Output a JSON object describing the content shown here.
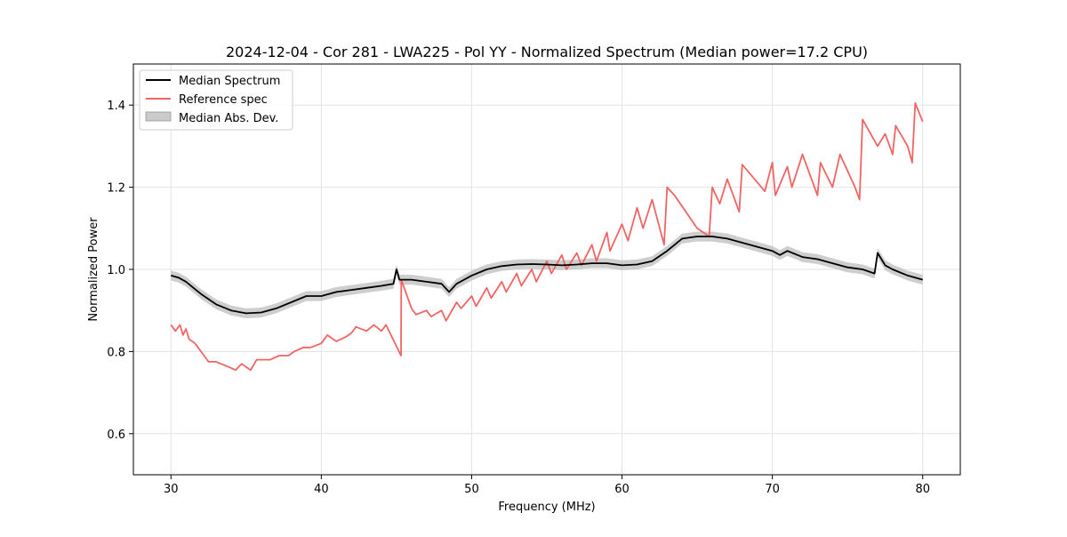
{
  "chart_data": {
    "type": "line",
    "title": "2024-12-04 - Cor 281 - LWA225 - Pol YY - Normalized Spectrum (Median power=17.2 CPU)",
    "xlabel": "Frequency (MHz)",
    "ylabel": "Normalized Power",
    "xlim": [
      27.5,
      82.5
    ],
    "ylim": [
      0.5,
      1.5
    ],
    "xticks": [
      30,
      40,
      50,
      60,
      70,
      80
    ],
    "yticks": [
      0.6,
      0.8,
      1.0,
      1.2,
      1.4
    ],
    "xtick_labels": [
      "30",
      "40",
      "50",
      "60",
      "70",
      "80"
    ],
    "ytick_labels": [
      "0.6",
      "0.8",
      "1.0",
      "1.2",
      "1.4"
    ],
    "grid": true,
    "legend_position": "top-left",
    "legend": [
      "Median Spectrum",
      "Reference spec",
      "Median Abs. Dev."
    ],
    "colors": {
      "median": "#000000",
      "reference": "#f16464",
      "band": "#bdbdbd"
    },
    "mad_width": 0.012,
    "series": [
      {
        "name": "Median Spectrum",
        "x": [
          30,
          30.5,
          31,
          31.5,
          32,
          33,
          34,
          35,
          36,
          37,
          38,
          39,
          40,
          41,
          42,
          43,
          44,
          44.8,
          45,
          45.2,
          46,
          47,
          48,
          48.5,
          49,
          50,
          51,
          52,
          53,
          54,
          55,
          56,
          57,
          58,
          59,
          60,
          61,
          62,
          63,
          64,
          65,
          66,
          67,
          68,
          69,
          70,
          70.5,
          71,
          72,
          73,
          74,
          75,
          76,
          76.8,
          77,
          77.5,
          78,
          79,
          80
        ],
        "values": [
          0.985,
          0.98,
          0.97,
          0.955,
          0.94,
          0.915,
          0.9,
          0.893,
          0.895,
          0.905,
          0.92,
          0.935,
          0.935,
          0.945,
          0.95,
          0.955,
          0.96,
          0.965,
          1.0,
          0.975,
          0.975,
          0.97,
          0.965,
          0.945,
          0.965,
          0.985,
          1.0,
          1.008,
          1.012,
          1.013,
          1.012,
          1.01,
          1.012,
          1.015,
          1.015,
          1.01,
          1.012,
          1.02,
          1.045,
          1.075,
          1.08,
          1.08,
          1.075,
          1.065,
          1.055,
          1.045,
          1.035,
          1.045,
          1.03,
          1.025,
          1.015,
          1.005,
          1.0,
          0.99,
          1.04,
          1.01,
          1.0,
          0.985,
          0.975
        ]
      },
      {
        "name": "Reference spec",
        "x": [
          30,
          30.3,
          30.6,
          30.8,
          31,
          31.2,
          31.6,
          32,
          32.5,
          33,
          34,
          34.3,
          34.7,
          35.3,
          35.7,
          36.6,
          37.2,
          37.8,
          38.2,
          38.8,
          39.3,
          40,
          40.4,
          41,
          41.6,
          42,
          42.3,
          43,
          43.5,
          44,
          44.3,
          45.3,
          45.32,
          46,
          46.3,
          47,
          47.3,
          48,
          48.3,
          49,
          49.3,
          50,
          50.3,
          51,
          51.3,
          52,
          52.3,
          53,
          53.3,
          54,
          54.3,
          55,
          55.3,
          56,
          56.3,
          57,
          57.3,
          58,
          58.3,
          59,
          59.2,
          60,
          60.4,
          61,
          61.4,
          62,
          62.8,
          63,
          63.5,
          65,
          65.8,
          66,
          66.5,
          67,
          67.8,
          68,
          69.5,
          70,
          70.2,
          71,
          71.3,
          72,
          73,
          73.2,
          74,
          74.5,
          75,
          75.5,
          75.8,
          76,
          77,
          77.5,
          78,
          78.2,
          79,
          79.3,
          79.5,
          80
        ],
        "values": [
          0.865,
          0.85,
          0.865,
          0.84,
          0.855,
          0.83,
          0.82,
          0.8,
          0.775,
          0.775,
          0.76,
          0.755,
          0.77,
          0.755,
          0.78,
          0.78,
          0.79,
          0.79,
          0.8,
          0.81,
          0.81,
          0.82,
          0.84,
          0.825,
          0.835,
          0.845,
          0.86,
          0.85,
          0.865,
          0.85,
          0.865,
          0.79,
          0.975,
          0.905,
          0.89,
          0.9,
          0.885,
          0.9,
          0.875,
          0.92,
          0.905,
          0.935,
          0.91,
          0.955,
          0.93,
          0.97,
          0.945,
          0.99,
          0.96,
          1.0,
          0.97,
          1.02,
          0.99,
          1.035,
          1.0,
          1.04,
          1.01,
          1.06,
          1.02,
          1.09,
          1.045,
          1.11,
          1.07,
          1.15,
          1.1,
          1.17,
          1.06,
          1.2,
          1.18,
          1.1,
          1.08,
          1.2,
          1.16,
          1.22,
          1.14,
          1.255,
          1.19,
          1.26,
          1.18,
          1.25,
          1.2,
          1.28,
          1.18,
          1.26,
          1.2,
          1.28,
          1.24,
          1.2,
          1.17,
          1.365,
          1.3,
          1.33,
          1.28,
          1.35,
          1.3,
          1.26,
          1.405,
          1.36
        ]
      }
    ]
  }
}
